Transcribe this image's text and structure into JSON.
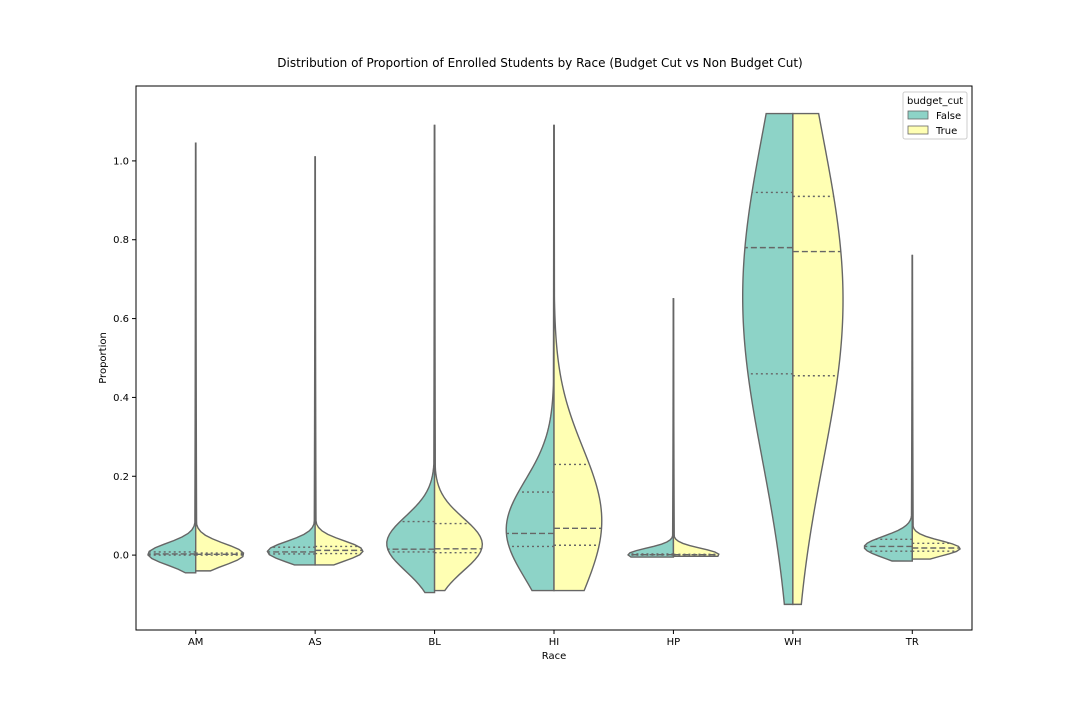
{
  "chart_data": {
    "type": "violin",
    "title": "Distribution of Proportion of Enrolled Students by Race (Budget Cut vs Non Budget Cut)",
    "xlabel": "Race",
    "ylabel": "Proportion",
    "categories": [
      "AM",
      "AS",
      "BL",
      "HI",
      "HP",
      "WH",
      "TR"
    ],
    "ylim": [
      -0.19,
      1.19
    ],
    "yticks": [
      0.0,
      0.2,
      0.4,
      0.6,
      0.8,
      1.0
    ],
    "ytick_labels": [
      "0.0",
      "0.2",
      "0.4",
      "0.6",
      "0.8",
      "1.0"
    ],
    "split": true,
    "legend": {
      "title": "budget_cut",
      "position": "top-right",
      "entries": [
        {
          "label": "False",
          "color": "#8dd3c7"
        },
        {
          "label": "True",
          "color": "#ffffb3"
        }
      ]
    },
    "series": [
      {
        "name": "False",
        "color": "#8dd3c7",
        "violins": [
          {
            "cat": "AM",
            "min": -0.045,
            "max": 1.045,
            "q1": 0.0,
            "median": 0.003,
            "q3": 0.008
          },
          {
            "cat": "AS",
            "min": -0.025,
            "max": 1.01,
            "q1": 0.003,
            "median": 0.008,
            "q3": 0.02
          },
          {
            "cat": "BL",
            "min": -0.095,
            "max": 1.09,
            "q1": 0.008,
            "median": 0.015,
            "q3": 0.085
          },
          {
            "cat": "HI",
            "min": -0.09,
            "max": 1.09,
            "q1": 0.022,
            "median": 0.055,
            "q3": 0.16
          },
          {
            "cat": "HP",
            "min": -0.005,
            "max": 0.65,
            "q1": 0.0,
            "median": 0.001,
            "q3": 0.003
          },
          {
            "cat": "WH",
            "min": -0.125,
            "max": 1.12,
            "q1": 0.46,
            "median": 0.78,
            "q3": 0.92
          },
          {
            "cat": "TR",
            "min": -0.015,
            "max": 0.76,
            "q1": 0.01,
            "median": 0.022,
            "q3": 0.04
          }
        ]
      },
      {
        "name": "True",
        "color": "#ffffb3",
        "violins": [
          {
            "cat": "AM",
            "min": -0.04,
            "max": 1.045,
            "q1": 0.0,
            "median": 0.002,
            "q3": 0.005
          },
          {
            "cat": "AS",
            "min": -0.025,
            "max": 1.01,
            "q1": 0.004,
            "median": 0.012,
            "q3": 0.022
          },
          {
            "cat": "BL",
            "min": -0.09,
            "max": 1.09,
            "q1": 0.006,
            "median": 0.016,
            "q3": 0.08
          },
          {
            "cat": "HI",
            "min": -0.09,
            "max": 1.09,
            "q1": 0.025,
            "median": 0.068,
            "q3": 0.23
          },
          {
            "cat": "HP",
            "min": -0.003,
            "max": 0.65,
            "q1": 0.0,
            "median": 0.001,
            "q3": 0.002
          },
          {
            "cat": "WH",
            "min": -0.125,
            "max": 1.12,
            "q1": 0.455,
            "median": 0.77,
            "q3": 0.91
          },
          {
            "cat": "TR",
            "min": -0.01,
            "max": 0.76,
            "q1": 0.01,
            "median": 0.018,
            "q3": 0.03
          }
        ]
      }
    ]
  }
}
